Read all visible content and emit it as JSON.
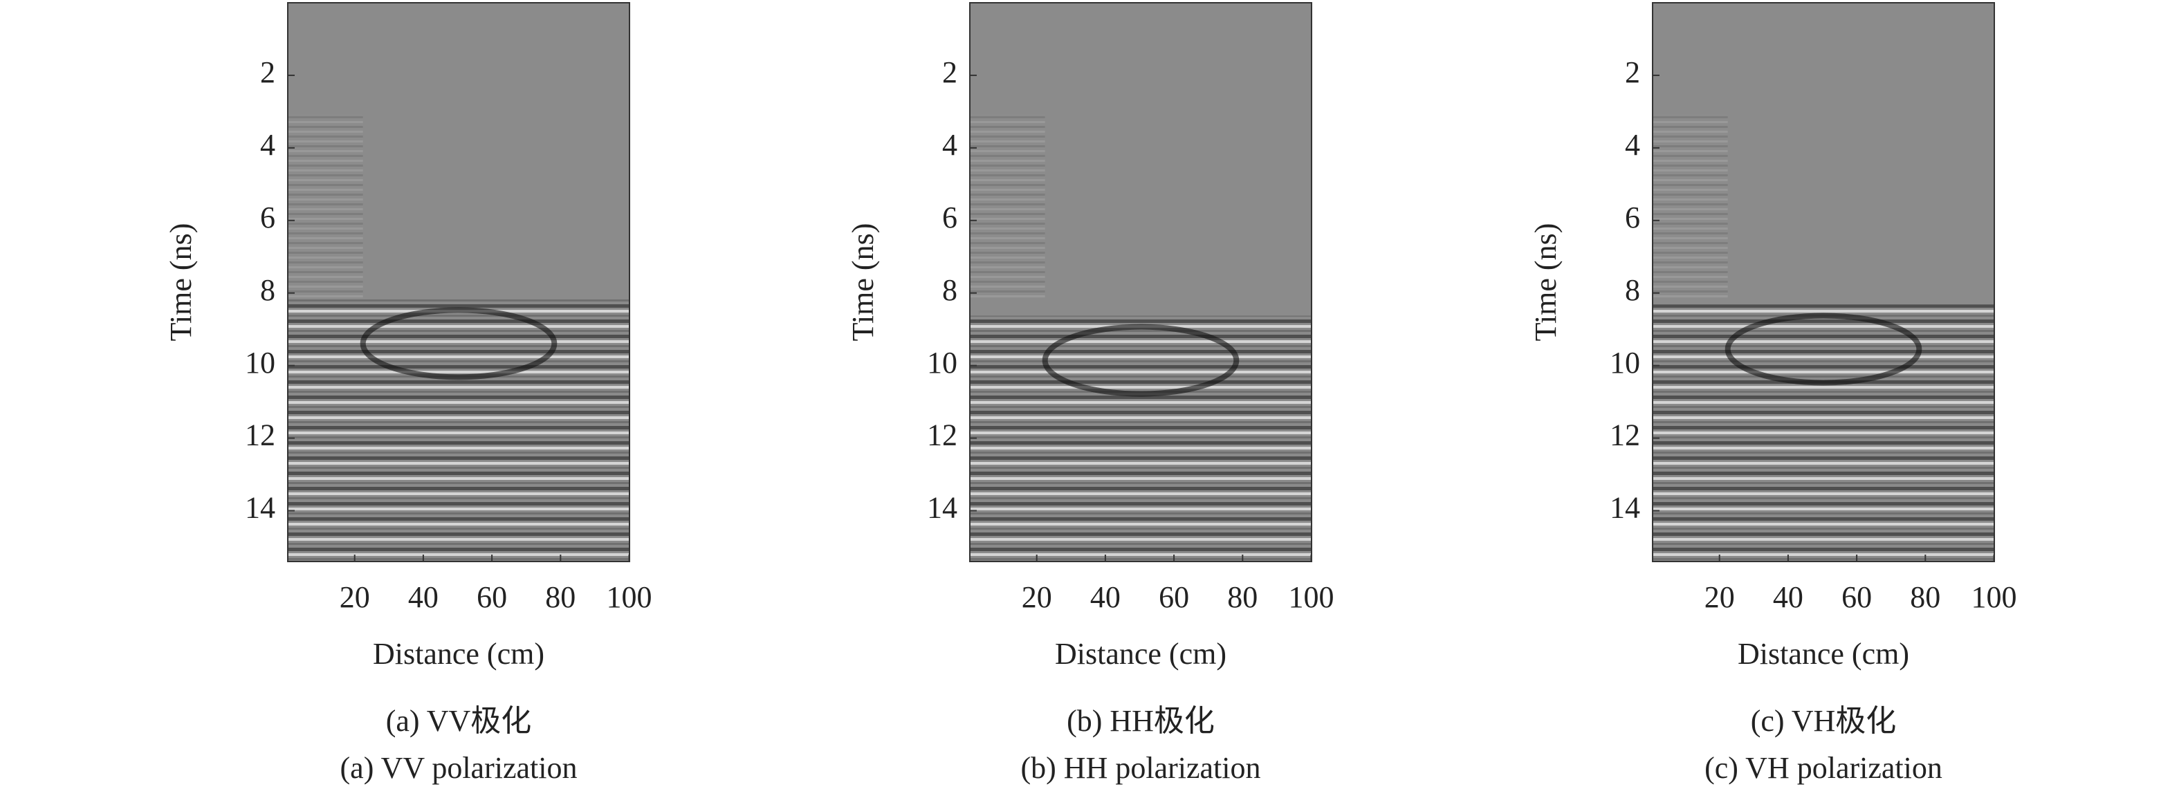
{
  "chart_data": [
    {
      "type": "image",
      "xlabel": "Distance (cm)",
      "ylabel": "Time (ns)",
      "caption": "(a) VV极化",
      "caption_en": "(a) VV polarization",
      "xlim": [
        0.5,
        100.1
      ],
      "ylim": [
        15.4,
        0
      ],
      "xticks": [
        20,
        40,
        60,
        80,
        100
      ],
      "yticks": [
        2,
        4,
        6,
        8,
        10,
        12,
        14
      ]
    },
    {
      "type": "image",
      "xlabel": "Distance (cm)",
      "ylabel": "Time (ns)",
      "caption": "(b) HH极化",
      "caption_en": "(b) HH polarization",
      "xlim": [
        0.5,
        100.1
      ],
      "ylim": [
        15.4,
        0
      ],
      "xticks": [
        20,
        40,
        60,
        80,
        100
      ],
      "yticks": [
        2,
        4,
        6,
        8,
        10,
        12,
        14
      ]
    },
    {
      "type": "image",
      "xlabel": "Distance (cm)",
      "ylabel": "Time (ns)",
      "caption": "(c) VH极化",
      "caption_en": "(c) VH polarization",
      "xlim": [
        0.5,
        100.1
      ],
      "ylim": [
        15.4,
        0
      ],
      "xticks": [
        20,
        40,
        60,
        80,
        100
      ],
      "yticks": [
        2,
        4,
        6,
        8,
        10,
        12,
        14
      ]
    }
  ]
}
